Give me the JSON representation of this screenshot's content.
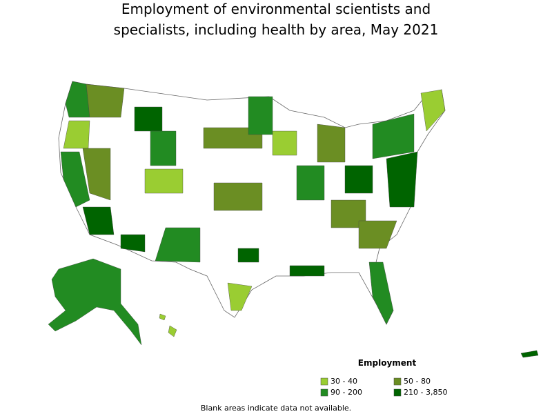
{
  "title": [
    "Employment of environmental scientists and",
    "specialists, including health by area, May 2021"
  ],
  "legend": {
    "title": "Employment",
    "items": [
      {
        "label": "30 - 40",
        "color": "#9acd32"
      },
      {
        "label": "50 - 80",
        "color": "#6b8e23"
      },
      {
        "label": "90 - 200",
        "color": "#228b22"
      },
      {
        "label": "210 - 3,850",
        "color": "#006400"
      }
    ]
  },
  "note": "Blank areas indicate data not available."
}
